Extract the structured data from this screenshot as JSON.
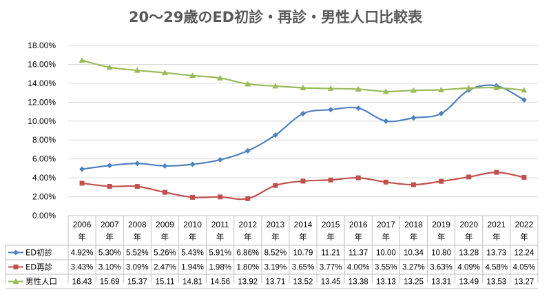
{
  "chart_data": {
    "type": "line",
    "title": "20～29歳のED初診・再診・男性人口比較表",
    "categories": [
      "2006",
      "2007",
      "2008",
      "2009",
      "2010",
      "2011",
      "2012",
      "2013",
      "2014",
      "2015",
      "2016",
      "2017",
      "2018",
      "2019",
      "2020",
      "2021",
      "2022"
    ],
    "category_suffix": "年",
    "ylim": [
      0,
      18
    ],
    "y_ticks": [
      "0.00%",
      "2.00%",
      "4.00%",
      "6.00%",
      "8.00%",
      "10.00%",
      "12.00%",
      "14.00%",
      "16.00%",
      "18.00%"
    ],
    "grid": true,
    "legend": "data-table",
    "series": [
      {
        "name": "ED初診",
        "color": "#4f81bd",
        "marker": "diamond",
        "values": [
          4.92,
          5.3,
          5.52,
          5.26,
          5.43,
          5.91,
          6.86,
          8.52,
          10.79,
          11.21,
          11.37,
          10.0,
          10.34,
          10.8,
          13.28,
          13.73,
          12.24
        ],
        "table_labels": [
          "4.92%",
          "5.30%",
          "5.52%",
          "5.26%",
          "5.43%",
          "5.91%",
          "6.86%",
          "8.52%",
          "10.79",
          "11.21",
          "11.37",
          "10.00",
          "10.34",
          "10.80",
          "13.28",
          "13.73",
          "12.24"
        ]
      },
      {
        "name": "ED再診",
        "color": "#c0504d",
        "marker": "square",
        "values": [
          3.43,
          3.1,
          3.09,
          2.47,
          1.94,
          1.98,
          1.8,
          3.19,
          3.65,
          3.77,
          4.0,
          3.55,
          3.27,
          3.63,
          4.09,
          4.58,
          4.05
        ],
        "table_labels": [
          "3.43%",
          "3.10%",
          "3.09%",
          "2.47%",
          "1.94%",
          "1.98%",
          "1.80%",
          "3.19%",
          "3.65%",
          "3.77%",
          "4.00%",
          "3.55%",
          "3.27%",
          "3.63%",
          "4.09%",
          "4.58%",
          "4.05%"
        ]
      },
      {
        "name": "男性人口",
        "color": "#9bbb59",
        "marker": "triangle",
        "values": [
          16.43,
          15.69,
          15.37,
          15.11,
          14.81,
          14.56,
          13.92,
          13.71,
          13.52,
          13.45,
          13.38,
          13.13,
          13.25,
          13.31,
          13.49,
          13.53,
          13.27
        ],
        "table_labels": [
          "16.43",
          "15.69",
          "15.37",
          "15.11",
          "14.81",
          "14.56",
          "13.92",
          "13.71",
          "13.52",
          "13.45",
          "13.38",
          "13.13",
          "13.25",
          "13.31",
          "13.49",
          "13.53",
          "13.27"
        ]
      }
    ]
  }
}
